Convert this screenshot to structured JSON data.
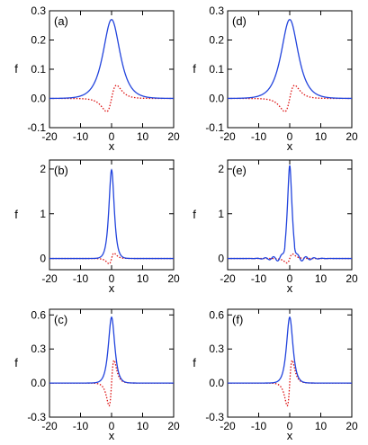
{
  "colors": {
    "solid": "#2244dd",
    "dotted": "#dd1111",
    "axis": "#000000"
  },
  "chart_data": [
    {
      "type": "line",
      "label": "(a)",
      "xlabel": "x",
      "ylabel": "f",
      "xlim": [
        -20,
        20
      ],
      "ylim": [
        -0.1,
        0.3
      ],
      "xticks": [
        -20,
        -10,
        0,
        10,
        20
      ],
      "xtick_labels": [
        "-20",
        "-10",
        "0",
        "10",
        "20"
      ],
      "yticks": [
        -0.1,
        0.0,
        0.1,
        0.2,
        0.3
      ],
      "ytick_labels": [
        "-0.1",
        "0.0",
        "0.1",
        "0.2",
        "0.3"
      ],
      "series": [
        {
          "style": "solid",
          "shape": "sech",
          "amp": 0.27,
          "width": 2.4
        },
        {
          "style": "dotted",
          "shape": "dsech",
          "amp": 0.045,
          "width": 1.8
        }
      ]
    },
    {
      "type": "line",
      "label": "(d)",
      "xlabel": "x",
      "ylabel": "f",
      "xlim": [
        -20,
        20
      ],
      "ylim": [
        -0.1,
        0.3
      ],
      "xticks": [
        -20,
        -10,
        0,
        10,
        20
      ],
      "xtick_labels": [
        "-20",
        "-10",
        "0",
        "10",
        "20"
      ],
      "yticks": [
        -0.1,
        0.0,
        0.1,
        0.2,
        0.3
      ],
      "ytick_labels": [
        "-0.1",
        "0.0",
        "0.1",
        "0.2",
        "0.3"
      ],
      "series": [
        {
          "style": "solid",
          "shape": "sech",
          "amp": 0.27,
          "width": 2.4
        },
        {
          "style": "dotted",
          "shape": "dsech",
          "amp": 0.045,
          "width": 1.8
        }
      ]
    },
    {
      "type": "line",
      "label": "(b)",
      "xlabel": "x",
      "ylabel": "f",
      "xlim": [
        -20,
        20
      ],
      "ylim": [
        -0.25,
        2.2
      ],
      "xticks": [
        -20,
        -10,
        0,
        10,
        20
      ],
      "xtick_labels": [
        "-20",
        "-10",
        "0",
        "10",
        "20"
      ],
      "yticks": [
        0,
        1,
        2
      ],
      "ytick_labels": [
        "0",
        "1",
        "2"
      ],
      "series": [
        {
          "style": "solid",
          "shape": "sech",
          "amp": 1.98,
          "width": 0.75
        },
        {
          "style": "dotted",
          "shape": "dsech",
          "amp": 0.12,
          "width": 0.9
        }
      ]
    },
    {
      "type": "line",
      "label": "(e)",
      "xlabel": "x",
      "ylabel": "f",
      "xlim": [
        -20,
        20
      ],
      "ylim": [
        -0.25,
        2.2
      ],
      "xticks": [
        -20,
        -10,
        0,
        10,
        20
      ],
      "xtick_labels": [
        "-20",
        "-10",
        "0",
        "10",
        "20"
      ],
      "yticks": [
        0,
        1,
        2
      ],
      "ytick_labels": [
        "0",
        "1",
        "2"
      ],
      "series": [
        {
          "style": "solid",
          "shape": "wiggly",
          "amp": 1.98,
          "width": 0.75
        },
        {
          "style": "dotted",
          "shape": "dsech",
          "amp": 0.1,
          "width": 1.0
        }
      ]
    },
    {
      "type": "line",
      "label": "(c)",
      "xlabel": "x",
      "ylabel": "f",
      "xlim": [
        -20,
        20
      ],
      "ylim": [
        -0.3,
        0.65
      ],
      "xticks": [
        -20,
        -10,
        0,
        10,
        20
      ],
      "xtick_labels": [
        "-20",
        "-10",
        "0",
        "10",
        "20"
      ],
      "yticks": [
        -0.3,
        0.0,
        0.3,
        0.6
      ],
      "ytick_labels": [
        "-0.3",
        "0.0",
        "0.3",
        "0.6"
      ],
      "series": [
        {
          "style": "solid",
          "shape": "sech",
          "amp": 0.58,
          "width": 0.9
        },
        {
          "style": "dotted",
          "shape": "dsech",
          "amp": 0.2,
          "width": 0.9
        }
      ]
    },
    {
      "type": "line",
      "label": "(f)",
      "xlabel": "x",
      "ylabel": "f",
      "xlim": [
        -20,
        20
      ],
      "ylim": [
        -0.3,
        0.65
      ],
      "xticks": [
        -20,
        -10,
        0,
        10,
        20
      ],
      "xtick_labels": [
        "-20",
        "-10",
        "0",
        "10",
        "20"
      ],
      "yticks": [
        -0.3,
        0.0,
        0.3,
        0.6
      ],
      "ytick_labels": [
        "-0.3",
        "0.0",
        "0.3",
        "0.6"
      ],
      "series": [
        {
          "style": "solid",
          "shape": "sech",
          "amp": 0.58,
          "width": 0.9
        },
        {
          "style": "dotted",
          "shape": "dsech",
          "amp": 0.2,
          "width": 0.9
        }
      ]
    }
  ]
}
